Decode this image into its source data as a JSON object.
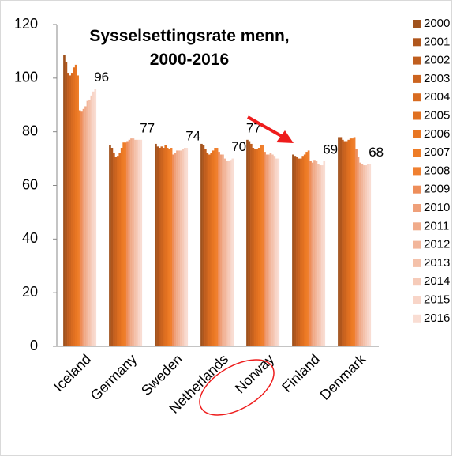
{
  "chart_data": {
    "type": "bar",
    "title": "Sysselsettingsrate menn, 2000-2016",
    "categories": [
      "Iceland",
      "Germany",
      "Sweden",
      "Netherlands",
      "Norway",
      "Finland",
      "Denmark"
    ],
    "ylim": [
      0,
      120
    ],
    "yticks": [
      0,
      20,
      40,
      60,
      80,
      100,
      120
    ],
    "grid": false,
    "legend": "right",
    "series": [
      {
        "name": "2000",
        "color": "#a0521d",
        "values": [
          108.5,
          75,
          75.5,
          75.5,
          77,
          71.5,
          78
        ],
        "value_labels": [
          null,
          null,
          null,
          null,
          "77",
          null,
          null
        ]
      },
      {
        "name": "2001",
        "color": "#b0561c",
        "values": [
          106,
          74,
          74.5,
          75,
          76.5,
          71,
          78
        ]
      },
      {
        "name": "2002",
        "color": "#c05e1e",
        "values": [
          102,
          72,
          74,
          73.5,
          75.5,
          70.5,
          77
        ]
      },
      {
        "name": "2003",
        "color": "#cc641f",
        "values": [
          101,
          70.5,
          74.5,
          72,
          74,
          70,
          76.5
        ]
      },
      {
        "name": "2004",
        "color": "#d86b20",
        "values": [
          102,
          71,
          74,
          71.5,
          73.5,
          70,
          76.5
        ]
      },
      {
        "name": "2005",
        "color": "#e07021",
        "values": [
          104,
          72,
          75,
          72,
          73.5,
          71,
          77
        ]
      },
      {
        "name": "2006",
        "color": "#e87623",
        "values": [
          105,
          74,
          74,
          73,
          74,
          71.5,
          77.5
        ]
      },
      {
        "name": "2007",
        "color": "#ee7c26",
        "values": [
          101,
          76,
          73.5,
          74,
          75,
          72.5,
          77.5
        ]
      },
      {
        "name": "2008",
        "color": "#f08030",
        "values": [
          88,
          76,
          74,
          74,
          75,
          73,
          78
        ]
      },
      {
        "name": "2009",
        "color": "#ee8e5a",
        "values": [
          87.5,
          76.5,
          71.5,
          72.5,
          72.5,
          69,
          73.5
        ]
      },
      {
        "name": "2010",
        "color": "#efa07a",
        "values": [
          88.5,
          77,
          72,
          71.5,
          71.5,
          68.5,
          70.5
        ]
      },
      {
        "name": "2011",
        "color": "#f0ab8a",
        "values": [
          89.5,
          77.5,
          73,
          71.5,
          71.5,
          69.5,
          68.5
        ]
      },
      {
        "name": "2012",
        "color": "#f2b69b",
        "values": [
          91.5,
          77.5,
          73,
          70,
          72,
          69,
          68
        ]
      },
      {
        "name": "2013",
        "color": "#f4c1aa",
        "values": [
          92,
          77,
          73,
          69,
          71.5,
          68,
          67.5
        ]
      },
      {
        "name": "2014",
        "color": "#f6cbb9",
        "values": [
          93.5,
          77,
          73.5,
          69,
          71,
          67.5,
          67.5
        ]
      },
      {
        "name": "2015",
        "color": "#f8d5c8",
        "values": [
          95,
          77,
          74,
          69.5,
          70,
          67.5,
          68
        ]
      },
      {
        "name": "2016",
        "color": "#f9ddd3",
        "values": [
          96,
          77,
          74,
          70,
          70,
          69,
          68
        ],
        "value_labels": [
          "96",
          "77",
          "74",
          "70",
          null,
          "69",
          "68"
        ]
      }
    ]
  }
}
